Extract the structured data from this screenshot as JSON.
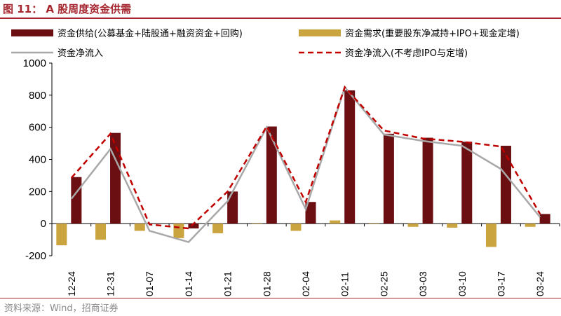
{
  "header": {
    "title": "图 11： A 股周度资金供需"
  },
  "footer": {
    "source": "资料来源：Wind，招商证券"
  },
  "chart_data": {
    "type": "bar",
    "categories": [
      "12-24",
      "12-31",
      "01-07",
      "01-14",
      "01-21",
      "01-28",
      "02-04",
      "02-11",
      "02-25",
      "03-03",
      "03-10",
      "03-17",
      "03-24"
    ],
    "ylim": [
      -200,
      1000
    ],
    "yticks": [
      -200,
      0,
      200,
      400,
      600,
      800,
      1000
    ],
    "grid": false,
    "legend_position": "top",
    "series": [
      {
        "name": "资金供给(公募基金+陆股通+融资资金+回购)",
        "kind": "bar",
        "color": "#6b0f12",
        "values": [
          290,
          565,
          0,
          -30,
          200,
          605,
          135,
          830,
          560,
          535,
          510,
          485,
          60
        ]
      },
      {
        "name": "资金需求(重要股东净减持+IPO+现金定增)",
        "kind": "bar",
        "color": "#c9a43f",
        "values": [
          -135,
          -100,
          -45,
          -90,
          -60,
          -3,
          -45,
          20,
          -3,
          -20,
          -25,
          -145,
          -20
        ]
      },
      {
        "name": "资金净流入",
        "kind": "line",
        "color": "#a8a8a8",
        "dash": "solid",
        "values": [
          155,
          465,
          -45,
          -115,
          140,
          600,
          90,
          850,
          555,
          515,
          485,
          340,
          40
        ]
      },
      {
        "name": "资金净流入(不考虑IPO与定增)",
        "kind": "line",
        "color": "#c00000",
        "dash": "dashed",
        "values": [
          285,
          560,
          -5,
          -30,
          200,
          605,
          135,
          850,
          580,
          530,
          510,
          480,
          60
        ]
      }
    ]
  }
}
